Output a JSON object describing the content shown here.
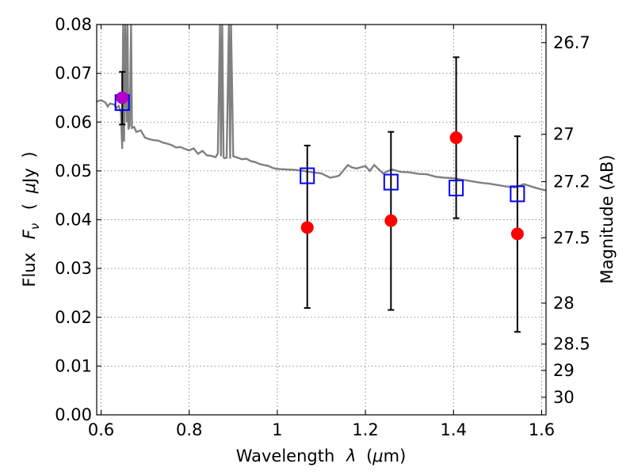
{
  "chart_data": {
    "type": "scatter",
    "xlabel": "Wavelength",
    "xlabel_symbol": "λ",
    "xlabel_unit_prefix": "(",
    "xlabel_unit_mu": "μ",
    "xlabel_unit_rest": "m)",
    "ylabel": "Flux",
    "ylabel_symbol": "F",
    "ylabel_subscript": "ν",
    "ylabel_unit_open": "(",
    "ylabel_unit_mu": "μ",
    "ylabel_unit_rest": "Jy",
    "ylabel_unit_close": ")",
    "y2label": "Magnitude (AB)",
    "xlim": [
      0.59,
      1.61
    ],
    "ylim": [
      0.0,
      0.08
    ],
    "x_ticks": [
      0.6,
      0.8,
      1.0,
      1.2,
      1.4,
      1.6
    ],
    "x_tick_labels": [
      "0.6",
      "0.8",
      "1",
      "1.2",
      "1.4",
      "1.6"
    ],
    "y_ticks": [
      0.0,
      0.01,
      0.02,
      0.03,
      0.04,
      0.05,
      0.06,
      0.07,
      0.08
    ],
    "y_tick_labels": [
      "0.00",
      "0.01",
      "0.02",
      "0.03",
      "0.04",
      "0.05",
      "0.06",
      "0.07",
      "0.08"
    ],
    "y2_ticks": [
      {
        "flux": 0.0763,
        "label": "26.7"
      },
      {
        "flux": 0.0575,
        "label": "27"
      },
      {
        "flux": 0.0478,
        "label": "27.2"
      },
      {
        "flux": 0.0363,
        "label": "27.5"
      },
      {
        "flux": 0.0229,
        "label": "28"
      },
      {
        "flux": 0.0145,
        "label": "28.5"
      },
      {
        "flux": 0.0091,
        "label": "29"
      },
      {
        "flux": 0.0036,
        "label": "30"
      }
    ],
    "grid": true,
    "series": [
      {
        "kind": "model_spectrum",
        "color": "#808080",
        "x": [
          0.59,
          0.6,
          0.61,
          0.615,
          0.62,
          0.63,
          0.635,
          0.64,
          0.645,
          0.648,
          0.65,
          0.652,
          0.655,
          0.658,
          0.66,
          0.662,
          0.665,
          0.668,
          0.67,
          0.675,
          0.68,
          0.69,
          0.7,
          0.71,
          0.72,
          0.73,
          0.74,
          0.75,
          0.76,
          0.77,
          0.78,
          0.79,
          0.8,
          0.81,
          0.82,
          0.83,
          0.84,
          0.85,
          0.86,
          0.865,
          0.87,
          0.872,
          0.875,
          0.878,
          0.88,
          0.885,
          0.89,
          0.893,
          0.895,
          0.9,
          0.91,
          0.92,
          0.93,
          0.94,
          0.95,
          0.96,
          0.97,
          0.98,
          0.99,
          1.0,
          1.02,
          1.04,
          1.06,
          1.08,
          1.1,
          1.12,
          1.14,
          1.16,
          1.17,
          1.18,
          1.2,
          1.21,
          1.22,
          1.24,
          1.26,
          1.28,
          1.3,
          1.32,
          1.34,
          1.36,
          1.38,
          1.4,
          1.42,
          1.44,
          1.46,
          1.48,
          1.5,
          1.52,
          1.54,
          1.56,
          1.58,
          1.6,
          1.61
        ],
        "y": [
          0.0642,
          0.0645,
          0.064,
          0.0632,
          0.0638,
          0.0636,
          0.0629,
          0.0633,
          0.062,
          0.0545,
          0.08,
          0.056,
          0.08,
          0.06,
          0.08,
          0.0585,
          0.0593,
          0.08,
          0.0588,
          0.059,
          0.058,
          0.0583,
          0.0568,
          0.0565,
          0.0563,
          0.0562,
          0.0558,
          0.0556,
          0.0553,
          0.0548,
          0.0549,
          0.0545,
          0.0542,
          0.0546,
          0.0535,
          0.0541,
          0.0532,
          0.0531,
          0.0528,
          0.0536,
          0.08,
          0.053,
          0.08,
          0.0528,
          0.0526,
          0.0527,
          0.08,
          0.0525,
          0.08,
          0.053,
          0.0527,
          0.0524,
          0.0525,
          0.052,
          0.0518,
          0.0514,
          0.0512,
          0.051,
          0.0506,
          0.0504,
          0.0503,
          0.0502,
          0.05,
          0.0497,
          0.0495,
          0.0486,
          0.049,
          0.0512,
          0.0507,
          0.0505,
          0.051,
          0.05,
          0.0512,
          0.0495,
          0.0503,
          0.0498,
          0.0497,
          0.0494,
          0.0493,
          0.0488,
          0.0486,
          0.0485,
          0.0482,
          0.0479,
          0.0476,
          0.0474,
          0.0471,
          0.0468,
          0.0466,
          0.0473,
          0.0467,
          0.0462,
          0.046
        ]
      },
      {
        "kind": "model_points",
        "marker": "open_square",
        "color": "#0000ff",
        "x": [
          0.648,
          1.068,
          1.258,
          1.406,
          1.545
        ],
        "y": [
          0.064,
          0.049,
          0.0477,
          0.0465,
          0.0453
        ]
      },
      {
        "kind": "observed_points",
        "marker": "filled_circle",
        "color": "#ff0000",
        "x": [
          0.648,
          1.068,
          1.258,
          1.406,
          1.545
        ],
        "y": [
          0.065,
          0.0384,
          0.0398,
          0.0568,
          0.0371
        ],
        "yerr_low": [
          0.0595,
          0.0219,
          0.0215,
          0.0403,
          0.017
        ],
        "yerr_high": [
          0.0703,
          0.0552,
          0.058,
          0.0733,
          0.0571
        ],
        "overlap_color": "#b000c8"
      }
    ]
  }
}
